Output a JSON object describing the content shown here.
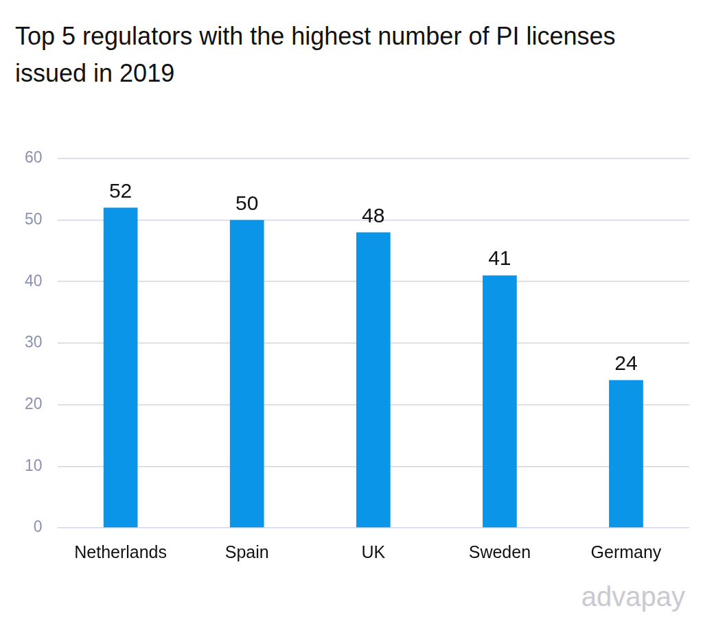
{
  "chart_data": {
    "type": "bar",
    "title": "Top 5 regulators with the highest number of PI licenses issued in 2019",
    "categories": [
      "Netherlands",
      "Spain",
      "UK",
      "Sweden",
      "Germany"
    ],
    "values": [
      52,
      50,
      48,
      41,
      24
    ],
    "color": "#0a95e8",
    "ylim": [
      0,
      60
    ],
    "yticks": [
      0,
      10,
      20,
      30,
      40,
      50,
      60
    ],
    "grid": true,
    "data_labels": true,
    "annotations": [
      "advapay"
    ]
  }
}
